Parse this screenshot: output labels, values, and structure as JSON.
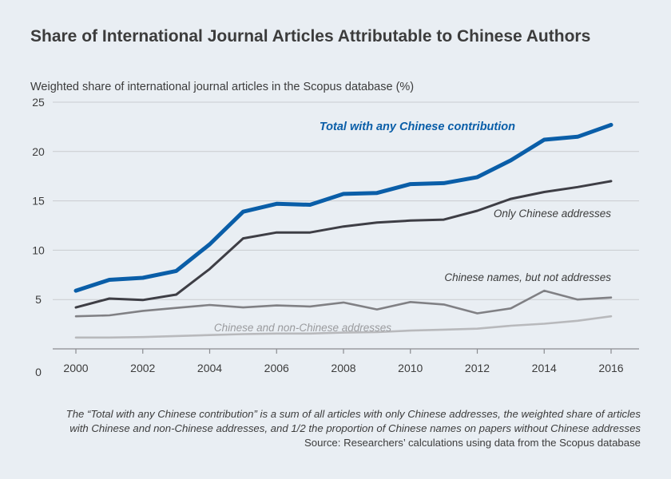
{
  "chart_data": {
    "type": "line",
    "title": "Share of International Journal Articles Attributable to Chinese Authors",
    "ylabel": "Weighted share of international journal articles in the Scopus database (%)",
    "xlabel": "",
    "x": [
      2000,
      2001,
      2002,
      2003,
      2004,
      2005,
      2006,
      2007,
      2008,
      2009,
      2010,
      2011,
      2012,
      2013,
      2014,
      2015,
      2016
    ],
    "xticks": [
      "2000",
      "2002",
      "2004",
      "2006",
      "2008",
      "2010",
      "2012",
      "2014",
      "2016"
    ],
    "yticks": [
      "0",
      "5",
      "10",
      "15",
      "20",
      "25"
    ],
    "ylim": [
      0,
      25
    ],
    "grid": true,
    "series": [
      {
        "name": "Total with any Chinese contribution",
        "color": "#0a5ea8",
        "values": [
          5.9,
          7.0,
          7.2,
          7.9,
          10.6,
          13.9,
          14.7,
          14.6,
          15.7,
          15.8,
          16.7,
          16.8,
          17.4,
          19.1,
          21.2,
          21.5,
          22.7
        ]
      },
      {
        "name": "Only Chinese addresses",
        "color": "#3e3e45",
        "values": [
          4.2,
          5.1,
          4.95,
          5.5,
          8.1,
          11.2,
          11.8,
          11.8,
          12.4,
          12.8,
          13.0,
          13.1,
          14.0,
          15.2,
          15.9,
          16.4,
          17.0
        ]
      },
      {
        "name": "Chinese names, but not addresses",
        "color": "#808084",
        "values": [
          3.3,
          3.4,
          3.85,
          4.15,
          4.45,
          4.2,
          4.4,
          4.3,
          4.7,
          4.0,
          4.75,
          4.5,
          3.6,
          4.1,
          5.9,
          5.0,
          5.2
        ]
      },
      {
        "name": "Chinese and non-Chinese addresses",
        "color": "#b8b9bc",
        "values": [
          1.15,
          1.15,
          1.2,
          1.3,
          1.4,
          1.5,
          1.55,
          1.55,
          1.65,
          1.7,
          1.85,
          1.95,
          2.05,
          2.35,
          2.55,
          2.85,
          3.3
        ]
      }
    ]
  },
  "note": {
    "line1": "The “Total with any Chinese contribution” is a sum of all articles with only Chinese addresses, the weighted share of articles",
    "line2": "with Chinese and non-Chinese addresses, and 1/2 the proportion of Chinese names on papers without Chinese addresses",
    "source": "Source: Researchers’ calculations using data from the Scopus database"
  },
  "colors": {
    "background": "#e9eef3",
    "gridline": "#c9ccd0",
    "text": "#3c3c3c"
  }
}
